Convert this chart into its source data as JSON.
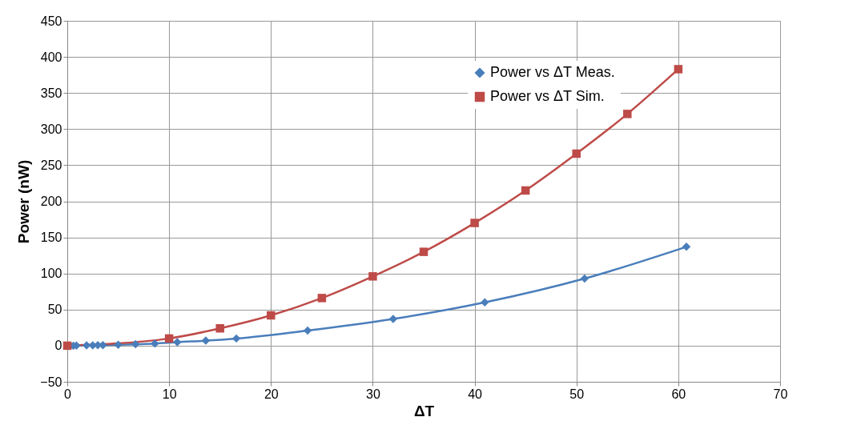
{
  "chart_data": {
    "type": "line",
    "xlabel": "ΔT",
    "ylabel": "Power (nW)",
    "xlim": [
      0,
      70
    ],
    "xticks": [
      0,
      10,
      20,
      30,
      40,
      50,
      60,
      70
    ],
    "ylim": [
      -50,
      450
    ],
    "yticks": [
      -50,
      0,
      50,
      100,
      150,
      200,
      250,
      300,
      350,
      400,
      450
    ],
    "grid": true,
    "legend": "top",
    "series": [
      {
        "name": "Power vs ΔT Meas.",
        "color": "#4a7ebb",
        "marker": "diamond",
        "x": [
          0.3,
          0.6,
          0.9,
          1.9,
          2.5,
          3.0,
          3.5,
          5,
          6.7,
          8.6,
          10.8,
          13.6,
          16.6,
          23.6,
          32,
          41,
          50.8,
          60.8
        ],
        "values": [
          0,
          0,
          0.2,
          0.4,
          0.5,
          0.6,
          0.7,
          1.2,
          2,
          3,
          5,
          7,
          10,
          21,
          37,
          60,
          93,
          137
        ]
      },
      {
        "name": "Power vs ΔT Sim.",
        "color": "#be4b48",
        "marker": "square",
        "x": [
          0,
          10,
          15,
          20,
          25,
          30,
          35,
          40,
          45,
          50,
          55,
          60
        ],
        "values": [
          0,
          10,
          24,
          42,
          66,
          96,
          130,
          170,
          215,
          266,
          321,
          383
        ]
      }
    ]
  }
}
